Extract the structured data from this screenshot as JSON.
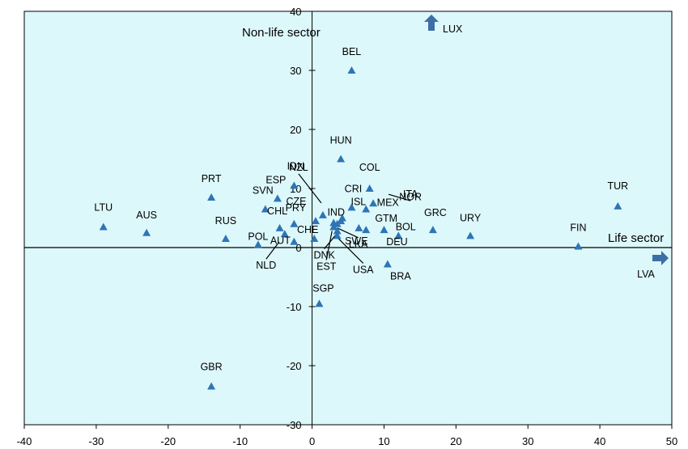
{
  "chart_data": {
    "type": "scatter",
    "title": "",
    "xlabel": "Life sector",
    "ylabel": "Non-life sector",
    "xlim": [
      -40,
      50
    ],
    "ylim": [
      -30,
      40
    ],
    "xticks": [
      -40,
      -30,
      -20,
      -10,
      0,
      10,
      20,
      30,
      40,
      50
    ],
    "yticks": [
      -30,
      -20,
      -10,
      0,
      10,
      20,
      30,
      40
    ],
    "grid": false,
    "colors": {
      "marker": "#2e75b6",
      "plot_bg": "#ddf8fb",
      "arrow": "#3d6fa6"
    },
    "points": [
      {
        "label": "LTU",
        "x": -29,
        "y": 3.5
      },
      {
        "label": "AUS",
        "x": -23,
        "y": 2.5
      },
      {
        "label": "PRT",
        "x": -14,
        "y": 8.5
      },
      {
        "label": "RUS",
        "x": -12,
        "y": 1.5
      },
      {
        "label": "SVN",
        "x": -6.5,
        "y": 6.5
      },
      {
        "label": "ESP",
        "x": -4.8,
        "y": 8.3
      },
      {
        "label": "POL",
        "x": -7.5,
        "y": 0.5
      },
      {
        "label": "CHL",
        "x": -4.5,
        "y": 3.3
      },
      {
        "label": "AUT",
        "x": -2.5,
        "y": 1.0
      },
      {
        "label": "PRY",
        "x": -2.5,
        "y": 4.0
      },
      {
        "label": "CHE",
        "x": 0.3,
        "y": 1.5
      },
      {
        "label": "NLD",
        "x": -3.8,
        "y": 2.3
      },
      {
        "label": "IDN",
        "x": -2.5,
        "y": 10.5
      },
      {
        "label": "CZE",
        "x": 0.5,
        "y": 4.5
      },
      {
        "label": "NZL",
        "x": 1.5,
        "y": 5.5
      },
      {
        "label": "IND",
        "x": 3.0,
        "y": 4.2
      },
      {
        "label": "ISL",
        "x": 4.2,
        "y": 5.0
      },
      {
        "label": "HUN",
        "x": 4.0,
        "y": 15.0
      },
      {
        "label": "BEL",
        "x": 5.5,
        "y": 30.0
      },
      {
        "label": "COL",
        "x": 8.0,
        "y": 10.0
      },
      {
        "label": "CRI",
        "x": 5.5,
        "y": 6.8
      },
      {
        "label": "ITA",
        "x": 4.0,
        "y": 4.5
      },
      {
        "label": "MEX",
        "x": 7.5,
        "y": 6.5
      },
      {
        "label": "NOR",
        "x": 8.5,
        "y": 7.5
      },
      {
        "label": "GTM",
        "x": 7.5,
        "y": 3.0
      },
      {
        "label": "BOL",
        "x": 12.0,
        "y": 2.0
      },
      {
        "label": "DEU",
        "x": 10.0,
        "y": 3.0
      },
      {
        "label": "SWE",
        "x": 6.5,
        "y": 3.3
      },
      {
        "label": "DNK",
        "x": 3.5,
        "y": 2.8
      },
      {
        "label": "EST",
        "x": 3.0,
        "y": 3.5
      },
      {
        "label": "LKA",
        "x": 3.5,
        "y": 4.0
      },
      {
        "label": "USA",
        "x": 3.5,
        "y": 2.0
      },
      {
        "label": "GRC",
        "x": 16.8,
        "y": 3.0
      },
      {
        "label": "BRA",
        "x": 10.5,
        "y": -2.8
      },
      {
        "label": "URY",
        "x": 22.0,
        "y": 2.0
      },
      {
        "label": "FIN",
        "x": 37.0,
        "y": 0.2
      },
      {
        "label": "TUR",
        "x": 42.5,
        "y": 7.0
      },
      {
        "label": "SGP",
        "x": 1.0,
        "y": -9.5
      },
      {
        "label": "GBR",
        "x": -14.0,
        "y": -23.5
      }
    ],
    "offscale": [
      {
        "label": "LUX",
        "direction": "up"
      },
      {
        "label": "LVA",
        "direction": "right"
      }
    ]
  }
}
